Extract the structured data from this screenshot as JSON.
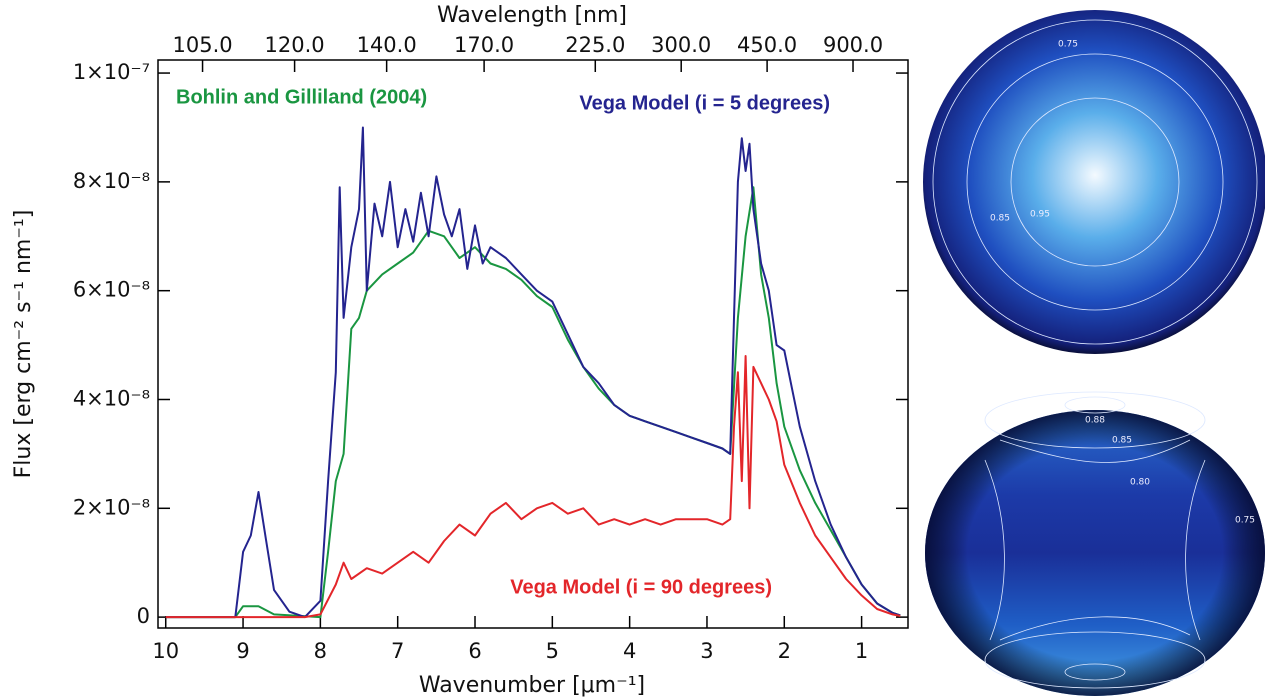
{
  "chart_data": {
    "type": "line",
    "title": "Wavelength [nm]",
    "xlabel": "Wavenumber [μm⁻¹]",
    "ylabel": "Flux [erg cm⁻² s⁻¹ nm⁻¹]",
    "xlim": [
      10.1,
      0.4
    ],
    "ylim": [
      -2e-09,
      1.024e-07
    ],
    "xticks": [
      10,
      9,
      8,
      7,
      6,
      5,
      4,
      3,
      2,
      1
    ],
    "yticks": [
      0,
      {
        "value": 2e-08,
        "label": "2×10⁻⁸"
      },
      {
        "value": 4e-08,
        "label": "4×10⁻⁸"
      },
      {
        "value": 6e-08,
        "label": "6×10⁻⁸"
      },
      {
        "value": 8e-08,
        "label": "8×10⁻⁸"
      },
      {
        "value": 1e-07,
        "label": "1×10⁻⁷"
      }
    ],
    "x2ticks": [
      {
        "value": 105,
        "label": "105.0"
      },
      {
        "value": 120,
        "label": "120.0"
      },
      {
        "value": 140,
        "label": "140.0"
      },
      {
        "value": 170,
        "label": "170.0"
      },
      {
        "value": 225,
        "label": "225.0"
      },
      {
        "value": 300,
        "label": "300.0"
      },
      {
        "value": 450,
        "label": "450.0"
      },
      {
        "value": 900,
        "label": "900.0"
      }
    ],
    "series": [
      {
        "name": "Bohlin and Gilliland (2004)",
        "color": "#1a9641",
        "x": [
          10,
          9.1,
          9.0,
          8.8,
          8.6,
          8.0,
          7.9,
          7.8,
          7.7,
          7.6,
          7.5,
          7.4,
          7.2,
          7.0,
          6.8,
          6.6,
          6.4,
          6.2,
          6.0,
          5.8,
          5.6,
          5.4,
          5.2,
          5.0,
          4.8,
          4.6,
          4.4,
          4.2,
          4.0,
          3.8,
          3.6,
          3.4,
          3.2,
          3.0,
          2.8,
          2.7,
          2.6,
          2.5,
          2.4,
          2.3,
          2.2,
          2.1,
          2.0,
          1.8,
          1.6,
          1.4,
          1.2,
          1.0,
          0.8,
          0.6,
          0.5
        ],
        "values": [
          0,
          0,
          2e-09,
          2e-09,
          5e-10,
          0,
          1.2e-08,
          2.5e-08,
          3e-08,
          5.3e-08,
          5.5e-08,
          6e-08,
          6.3e-08,
          6.5e-08,
          6.7e-08,
          7.1e-08,
          7e-08,
          6.6e-08,
          6.8e-08,
          6.5e-08,
          6.4e-08,
          6.2e-08,
          5.9e-08,
          5.7e-08,
          5.1e-08,
          4.6e-08,
          4.2e-08,
          3.9e-08,
          3.7e-08,
          3.6e-08,
          3.5e-08,
          3.4e-08,
          3.3e-08,
          3.2e-08,
          3.1e-08,
          3e-08,
          5.5e-08,
          7e-08,
          7.9e-08,
          6.3e-08,
          5.5e-08,
          4.3e-08,
          3.5e-08,
          2.7e-08,
          2.1e-08,
          1.6e-08,
          1.1e-08,
          6e-09,
          2.5e-09,
          8e-10,
          3e-10
        ]
      },
      {
        "name": "Vega Model (i = 5 degrees)",
        "color": "#24248f",
        "x": [
          10,
          9.1,
          9.0,
          8.9,
          8.8,
          8.7,
          8.6,
          8.4,
          8.2,
          8.0,
          7.9,
          7.8,
          7.75,
          7.7,
          7.6,
          7.5,
          7.45,
          7.4,
          7.3,
          7.2,
          7.1,
          7.0,
          6.9,
          6.8,
          6.7,
          6.6,
          6.5,
          6.4,
          6.3,
          6.2,
          6.1,
          6.0,
          5.9,
          5.8,
          5.6,
          5.4,
          5.2,
          5.0,
          4.8,
          4.6,
          4.4,
          4.2,
          4.0,
          3.8,
          3.6,
          3.4,
          3.2,
          3.0,
          2.8,
          2.7,
          2.65,
          2.6,
          2.55,
          2.5,
          2.45,
          2.4,
          2.3,
          2.2,
          2.1,
          2.0,
          1.9,
          1.8,
          1.6,
          1.4,
          1.2,
          1.0,
          0.8,
          0.6,
          0.5
        ],
        "values": [
          0,
          0,
          1.2e-08,
          1.5e-08,
          2.3e-08,
          1.4e-08,
          5e-09,
          1e-09,
          0,
          3e-09,
          2.5e-08,
          4.5e-08,
          7.9e-08,
          5.5e-08,
          6.8e-08,
          7.5e-08,
          9e-08,
          6e-08,
          7.6e-08,
          7e-08,
          8e-08,
          6.8e-08,
          7.5e-08,
          6.9e-08,
          7.8e-08,
          7e-08,
          8.1e-08,
          7.4e-08,
          7e-08,
          7.5e-08,
          6.4e-08,
          7.2e-08,
          6.5e-08,
          6.8e-08,
          6.6e-08,
          6.3e-08,
          6e-08,
          5.8e-08,
          5.2e-08,
          4.6e-08,
          4.3e-08,
          3.9e-08,
          3.7e-08,
          3.6e-08,
          3.5e-08,
          3.4e-08,
          3.3e-08,
          3.2e-08,
          3.1e-08,
          3e-08,
          5.5e-08,
          8e-08,
          8.8e-08,
          8.2e-08,
          8.7e-08,
          7.5e-08,
          6.5e-08,
          6e-08,
          5e-08,
          4.9e-08,
          4.2e-08,
          3.5e-08,
          2.5e-08,
          1.7e-08,
          1.1e-08,
          6e-09,
          2.5e-09,
          8e-10,
          3e-10
        ]
      },
      {
        "name": "Vega Model (i = 90 degrees)",
        "color": "#e3262a",
        "x": [
          10,
          8.2,
          8.0,
          7.8,
          7.7,
          7.6,
          7.4,
          7.2,
          7.0,
          6.8,
          6.6,
          6.4,
          6.2,
          6.0,
          5.8,
          5.6,
          5.4,
          5.2,
          5.0,
          4.8,
          4.6,
          4.4,
          4.2,
          4.0,
          3.8,
          3.6,
          3.4,
          3.2,
          3.0,
          2.8,
          2.7,
          2.65,
          2.6,
          2.55,
          2.5,
          2.45,
          2.4,
          2.3,
          2.2,
          2.1,
          2.0,
          1.8,
          1.6,
          1.4,
          1.2,
          1.0,
          0.8,
          0.6,
          0.5
        ],
        "values": [
          0,
          0,
          5e-10,
          6e-09,
          1e-08,
          7e-09,
          9e-09,
          8e-09,
          1e-08,
          1.2e-08,
          1e-08,
          1.4e-08,
          1.7e-08,
          1.5e-08,
          1.9e-08,
          2.1e-08,
          1.8e-08,
          2e-08,
          2.1e-08,
          1.9e-08,
          2e-08,
          1.7e-08,
          1.8e-08,
          1.7e-08,
          1.8e-08,
          1.7e-08,
          1.8e-08,
          1.8e-08,
          1.8e-08,
          1.7e-08,
          1.8e-08,
          3.5e-08,
          4.5e-08,
          2.5e-08,
          4.8e-08,
          2e-08,
          4.6e-08,
          4.3e-08,
          4e-08,
          3.6e-08,
          2.8e-08,
          2.1e-08,
          1.5e-08,
          1.1e-08,
          7e-09,
          4e-09,
          1.5e-09,
          5e-10,
          2e-10
        ]
      }
    ],
    "insets": [
      {
        "contour_labels": [
          "0.75",
          "0.85",
          "0.95"
        ]
      },
      {
        "contour_labels": [
          "0.88",
          "0.85",
          "0.80",
          "0.75"
        ]
      }
    ]
  }
}
